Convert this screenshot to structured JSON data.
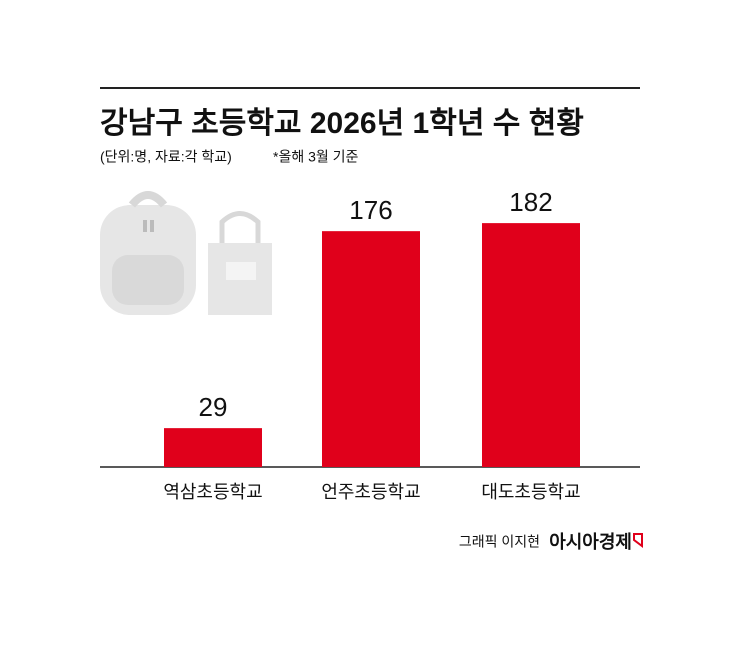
{
  "chart_data": {
    "type": "bar",
    "title": "강남구 초등학교 2026년 1학년 수 현황",
    "subtitle": "(단위:명, 자료:각 학교)",
    "note": "*올해 3월 기준",
    "categories": [
      "역삼초등학교",
      "언주초등학교",
      "대도초등학교"
    ],
    "values": [
      29,
      176,
      182
    ],
    "color": "#e0001b",
    "credit": "그래픽 이지현",
    "source": "아시아경제"
  }
}
